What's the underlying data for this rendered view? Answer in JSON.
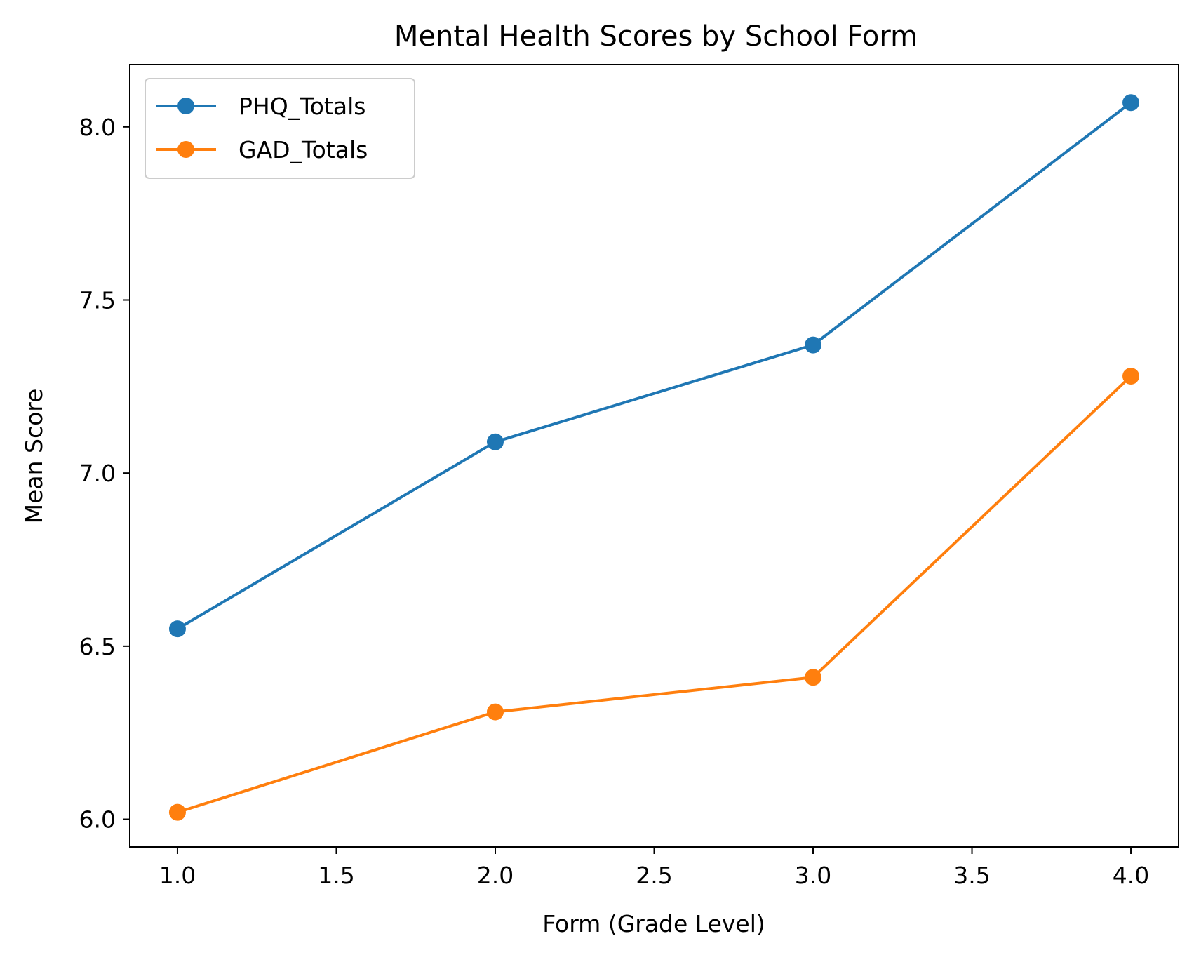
{
  "chart_data": {
    "type": "line",
    "title": "Mental Health Scores by School Form",
    "xlabel": "Form (Grade Level)",
    "ylabel": "Mean Score",
    "x": [
      1.0,
      2.0,
      3.0,
      4.0
    ],
    "xlim": [
      0.85,
      4.15
    ],
    "ylim": [
      5.92,
      8.18
    ],
    "xticks": [
      1.0,
      1.5,
      2.0,
      2.5,
      3.0,
      3.5,
      4.0
    ],
    "xtick_labels": [
      "1.0",
      "1.5",
      "2.0",
      "2.5",
      "3.0",
      "3.5",
      "4.0"
    ],
    "yticks": [
      6.0,
      6.5,
      7.0,
      7.5,
      8.0
    ],
    "ytick_labels": [
      "6.0",
      "6.5",
      "7.0",
      "7.5",
      "8.0"
    ],
    "grid": false,
    "legend_position": "upper-left",
    "series": [
      {
        "name": "PHQ_Totals",
        "color": "#1f77b4",
        "marker": "circle",
        "values": [
          6.55,
          7.09,
          7.37,
          8.07
        ]
      },
      {
        "name": "GAD_Totals",
        "color": "#ff7f0e",
        "marker": "circle",
        "values": [
          6.02,
          6.31,
          6.41,
          7.28
        ]
      }
    ]
  }
}
